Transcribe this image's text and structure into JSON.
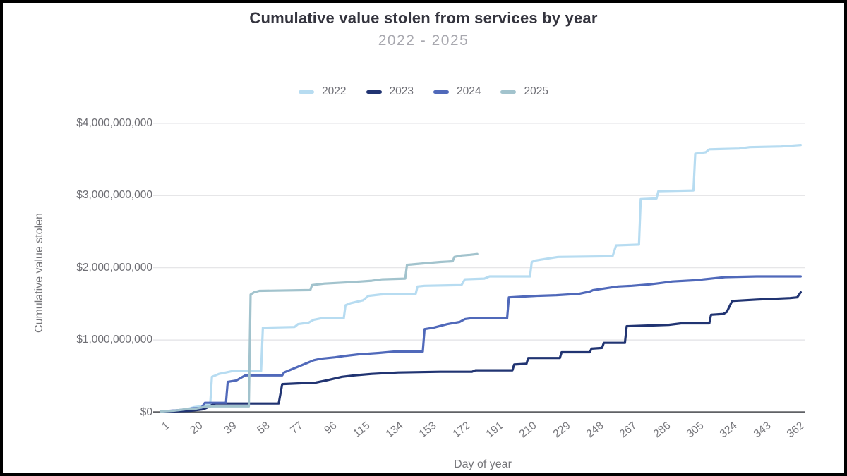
{
  "chart_data": {
    "type": "line",
    "title": "Cumulative value stolen from services by year",
    "subtitle": "2022 - 2025",
    "xlabel": "Day of year",
    "ylabel": "Cumulative value stolen",
    "legend_position": "top",
    "grid": "horizontal",
    "xlim_days": [
      1,
      365
    ],
    "ylim_usd": [
      0,
      4000000000
    ],
    "value_unit": "USD billions",
    "x_ticks": [
      "1",
      "20",
      "39",
      "58",
      "77",
      "96",
      "115",
      "134",
      "153",
      "172",
      "191",
      "210",
      "229",
      "248",
      "267",
      "286",
      "305",
      "324",
      "343",
      "362"
    ],
    "y_ticks": [
      {
        "v": 0,
        "label": "$0"
      },
      {
        "v": 1,
        "label": "$1,000,000,000"
      },
      {
        "v": 2,
        "label": "$2,000,000,000"
      },
      {
        "v": 3,
        "label": "$3,000,000,000"
      },
      {
        "v": 4,
        "label": "$4,000,000,000"
      }
    ],
    "series": [
      {
        "name": "2022",
        "color": "#b7dcf1",
        "points": [
          [
            1,
            0.005
          ],
          [
            8,
            0.02
          ],
          [
            14,
            0.03
          ],
          [
            17,
            0.05
          ],
          [
            20,
            0.07
          ],
          [
            23,
            0.08
          ],
          [
            27,
            0.1
          ],
          [
            29,
            0.1
          ],
          [
            30,
            0.49
          ],
          [
            32,
            0.51
          ],
          [
            34,
            0.53
          ],
          [
            38,
            0.55
          ],
          [
            42,
            0.57
          ],
          [
            58,
            0.57
          ],
          [
            59,
            1.17
          ],
          [
            77,
            1.18
          ],
          [
            79,
            1.22
          ],
          [
            85,
            1.24
          ],
          [
            88,
            1.28
          ],
          [
            92,
            1.3
          ],
          [
            105,
            1.3
          ],
          [
            106,
            1.48
          ],
          [
            109,
            1.51
          ],
          [
            116,
            1.55
          ],
          [
            119,
            1.61
          ],
          [
            126,
            1.63
          ],
          [
            132,
            1.64
          ],
          [
            146,
            1.64
          ],
          [
            147,
            1.74
          ],
          [
            151,
            1.75
          ],
          [
            172,
            1.76
          ],
          [
            174,
            1.84
          ],
          [
            185,
            1.85
          ],
          [
            188,
            1.88
          ],
          [
            211,
            1.88
          ],
          [
            212,
            2.08
          ],
          [
            214,
            2.1
          ],
          [
            224,
            2.14
          ],
          [
            227,
            2.15
          ],
          [
            258,
            2.16
          ],
          [
            260,
            2.31
          ],
          [
            273,
            2.32
          ],
          [
            274,
            2.95
          ],
          [
            283,
            2.96
          ],
          [
            284,
            3.06
          ],
          [
            304,
            3.07
          ],
          [
            305,
            3.58
          ],
          [
            311,
            3.6
          ],
          [
            313,
            3.64
          ],
          [
            330,
            3.65
          ],
          [
            336,
            3.67
          ],
          [
            354,
            3.68
          ],
          [
            365,
            3.7
          ]
        ]
      },
      {
        "name": "2023",
        "color": "#213472",
        "points": [
          [
            1,
            0.005
          ],
          [
            18,
            0.02
          ],
          [
            25,
            0.04
          ],
          [
            29,
            0.08
          ],
          [
            30,
            0.1
          ],
          [
            32,
            0.12
          ],
          [
            68,
            0.12
          ],
          [
            70,
            0.39
          ],
          [
            89,
            0.41
          ],
          [
            95,
            0.44
          ],
          [
            104,
            0.49
          ],
          [
            111,
            0.51
          ],
          [
            121,
            0.53
          ],
          [
            136,
            0.55
          ],
          [
            160,
            0.56
          ],
          [
            178,
            0.56
          ],
          [
            180,
            0.58
          ],
          [
            201,
            0.58
          ],
          [
            202,
            0.66
          ],
          [
            209,
            0.67
          ],
          [
            210,
            0.75
          ],
          [
            228,
            0.75
          ],
          [
            229,
            0.83
          ],
          [
            245,
            0.83
          ],
          [
            246,
            0.88
          ],
          [
            252,
            0.89
          ],
          [
            253,
            0.96
          ],
          [
            265,
            0.96
          ],
          [
            266,
            1.19
          ],
          [
            278,
            1.2
          ],
          [
            290,
            1.21
          ],
          [
            297,
            1.23
          ],
          [
            313,
            1.23
          ],
          [
            314,
            1.35
          ],
          [
            321,
            1.36
          ],
          [
            323,
            1.39
          ],
          [
            326,
            1.54
          ],
          [
            340,
            1.56
          ],
          [
            359,
            1.58
          ],
          [
            363,
            1.59
          ],
          [
            365,
            1.66
          ]
        ]
      },
      {
        "name": "2024",
        "color": "#5069ba",
        "points": [
          [
            1,
            0.01
          ],
          [
            12,
            0.03
          ],
          [
            18,
            0.05
          ],
          [
            24,
            0.06
          ],
          [
            26,
            0.13
          ],
          [
            38,
            0.13
          ],
          [
            39,
            0.42
          ],
          [
            44,
            0.44
          ],
          [
            46,
            0.47
          ],
          [
            49,
            0.51
          ],
          [
            70,
            0.51
          ],
          [
            71,
            0.55
          ],
          [
            73,
            0.57
          ],
          [
            79,
            0.63
          ],
          [
            84,
            0.68
          ],
          [
            88,
            0.72
          ],
          [
            92,
            0.74
          ],
          [
            100,
            0.76
          ],
          [
            106,
            0.78
          ],
          [
            113,
            0.8
          ],
          [
            125,
            0.82
          ],
          [
            134,
            0.84
          ],
          [
            150,
            0.84
          ],
          [
            151,
            1.15
          ],
          [
            156,
            1.17
          ],
          [
            164,
            1.22
          ],
          [
            171,
            1.25
          ],
          [
            174,
            1.29
          ],
          [
            177,
            1.3
          ],
          [
            198,
            1.3
          ],
          [
            199,
            1.59
          ],
          [
            214,
            1.61
          ],
          [
            226,
            1.62
          ],
          [
            239,
            1.64
          ],
          [
            245,
            1.67
          ],
          [
            247,
            1.69
          ],
          [
            261,
            1.74
          ],
          [
            269,
            1.75
          ],
          [
            279,
            1.77
          ],
          [
            286,
            1.79
          ],
          [
            292,
            1.81
          ],
          [
            307,
            1.83
          ],
          [
            310,
            1.84
          ],
          [
            322,
            1.87
          ],
          [
            340,
            1.88
          ],
          [
            365,
            1.88
          ]
        ]
      },
      {
        "name": "2025",
        "color": "#a2c3cd",
        "points": [
          [
            1,
            0.01
          ],
          [
            8,
            0.02
          ],
          [
            15,
            0.04
          ],
          [
            21,
            0.05
          ],
          [
            25,
            0.07
          ],
          [
            29,
            0.08
          ],
          [
            51,
            0.08
          ],
          [
            52,
            1.63
          ],
          [
            54,
            1.66
          ],
          [
            57,
            1.68
          ],
          [
            86,
            1.69
          ],
          [
            87,
            1.76
          ],
          [
            94,
            1.78
          ],
          [
            109,
            1.8
          ],
          [
            121,
            1.82
          ],
          [
            127,
            1.84
          ],
          [
            140,
            1.85
          ],
          [
            141,
            2.04
          ],
          [
            150,
            2.06
          ],
          [
            160,
            2.08
          ],
          [
            167,
            2.09
          ],
          [
            168,
            2.15
          ],
          [
            172,
            2.17
          ],
          [
            177,
            2.18
          ],
          [
            181,
            2.19
          ]
        ]
      }
    ]
  }
}
